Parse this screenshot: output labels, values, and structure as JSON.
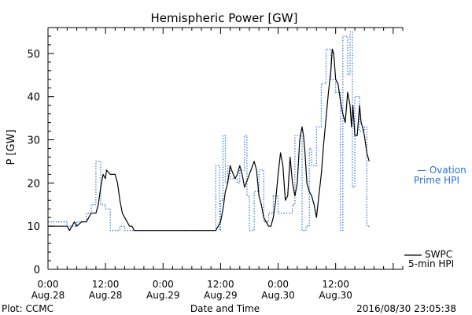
{
  "chart_data": {
    "type": "line",
    "title": "Hemispheric Power [GW]",
    "xlabel": "Date and Time",
    "ylabel": "P [GW]",
    "xlim": [
      0,
      74
    ],
    "ylim": [
      0,
      56
    ],
    "yticks": [
      0,
      10,
      20,
      30,
      40,
      50
    ],
    "xticks": [
      {
        "x": 0,
        "time": "0:00",
        "date": "Aug.28"
      },
      {
        "x": 12,
        "time": "12:00",
        "date": "Aug.28"
      },
      {
        "x": 24,
        "time": "0:00",
        "date": "Aug.29"
      },
      {
        "x": 36,
        "time": "12:00",
        "date": "Aug.29"
      },
      {
        "x": 48,
        "time": "0:00",
        "date": "Aug.30"
      },
      {
        "x": 60,
        "time": "12:00",
        "date": "Aug.30"
      }
    ],
    "footer_left": "Plot: CCMC",
    "footer_right": "2016/08/30 23:05:38",
    "series": [
      {
        "name": "Ovation Prime HPI",
        "legend": [
          "— Ovation",
          "Prime HPI"
        ],
        "color": "#2b6fd6",
        "style": "dotted-step",
        "points": [
          [
            0,
            11
          ],
          [
            4,
            11
          ],
          [
            4,
            10
          ],
          [
            6,
            10
          ],
          [
            6,
            11
          ],
          [
            8,
            11
          ],
          [
            8,
            13
          ],
          [
            9,
            13
          ],
          [
            9,
            15
          ],
          [
            10,
            15
          ],
          [
            10,
            25
          ],
          [
            11,
            25
          ],
          [
            11,
            15
          ],
          [
            12,
            15
          ],
          [
            12,
            14
          ],
          [
            13,
            14
          ],
          [
            13,
            9
          ],
          [
            15,
            9
          ],
          [
            15,
            10
          ],
          [
            16,
            10
          ],
          [
            16,
            9
          ],
          [
            35,
            9
          ],
          [
            35,
            24
          ],
          [
            35.8,
            24
          ],
          [
            35.8,
            9
          ],
          [
            36,
            9
          ],
          [
            36,
            16
          ],
          [
            36.5,
            16
          ],
          [
            36.5,
            31
          ],
          [
            37,
            31
          ],
          [
            37,
            20
          ],
          [
            37.5,
            20
          ],
          [
            37.5,
            24
          ],
          [
            38,
            24
          ],
          [
            38,
            21
          ],
          [
            39,
            21
          ],
          [
            39,
            21
          ],
          [
            39.5,
            21
          ],
          [
            39.5,
            20
          ],
          [
            40,
            20
          ],
          [
            40,
            23
          ],
          [
            41,
            23
          ],
          [
            41,
            31
          ],
          [
            41.5,
            31
          ],
          [
            41.5,
            17
          ],
          [
            42,
            17
          ],
          [
            42,
            9
          ],
          [
            43,
            9
          ],
          [
            43,
            18
          ],
          [
            44,
            18
          ],
          [
            44,
            23
          ],
          [
            45,
            23
          ],
          [
            45,
            11
          ],
          [
            46,
            11
          ],
          [
            46,
            13
          ],
          [
            47,
            13
          ],
          [
            47,
            17
          ],
          [
            48,
            17
          ],
          [
            48,
            13
          ],
          [
            51,
            13
          ],
          [
            51,
            15
          ],
          [
            51.5,
            15
          ],
          [
            51.5,
            31
          ],
          [
            53,
            31
          ],
          [
            53,
            9
          ],
          [
            53.8,
            9
          ],
          [
            53.8,
            10
          ],
          [
            54.5,
            10
          ],
          [
            54.5,
            28
          ],
          [
            55,
            28
          ],
          [
            55,
            24
          ],
          [
            56,
            24
          ],
          [
            56,
            33
          ],
          [
            57,
            33
          ],
          [
            57,
            43
          ],
          [
            58,
            43
          ],
          [
            58,
            51
          ],
          [
            59,
            51
          ],
          [
            59,
            44
          ],
          [
            60,
            44
          ],
          [
            60,
            41
          ],
          [
            61,
            41
          ],
          [
            61,
            9
          ],
          [
            61.5,
            9
          ],
          [
            61.5,
            54
          ],
          [
            62.5,
            54
          ],
          [
            62.5,
            45
          ],
          [
            63,
            45
          ],
          [
            63,
            55
          ],
          [
            63.5,
            55
          ],
          [
            63.5,
            19
          ],
          [
            64,
            19
          ],
          [
            64,
            40
          ],
          [
            65,
            40
          ],
          [
            65,
            32
          ],
          [
            66,
            32
          ],
          [
            66,
            33
          ],
          [
            66.5,
            33
          ],
          [
            66.5,
            10
          ],
          [
            67,
            10
          ]
        ]
      },
      {
        "name": "SWPC 5-min HPI",
        "legend": [
          "SWPC",
          "5-min HPI"
        ],
        "color": "#000000",
        "style": "solid",
        "points": [
          [
            0,
            10
          ],
          [
            4,
            10
          ],
          [
            4.5,
            9
          ],
          [
            5,
            10
          ],
          [
            5.5,
            11
          ],
          [
            6,
            10
          ],
          [
            7,
            11
          ],
          [
            8,
            11
          ],
          [
            8.5,
            12
          ],
          [
            9,
            13
          ],
          [
            10,
            13
          ],
          [
            10.5,
            15
          ],
          [
            11,
            19
          ],
          [
            11.5,
            22
          ],
          [
            12,
            21
          ],
          [
            12.2,
            23
          ],
          [
            13,
            22
          ],
          [
            14,
            22
          ],
          [
            14.5,
            20
          ],
          [
            15,
            16
          ],
          [
            15.5,
            13
          ],
          [
            16,
            12
          ],
          [
            16.5,
            11
          ],
          [
            17,
            10
          ],
          [
            17.5,
            10
          ],
          [
            18,
            9
          ],
          [
            24,
            9
          ],
          [
            35,
            9
          ],
          [
            36,
            11
          ],
          [
            36.5,
            14
          ],
          [
            37,
            18
          ],
          [
            37.5,
            20
          ],
          [
            38,
            24
          ],
          [
            38.3,
            23
          ],
          [
            39,
            21
          ],
          [
            39.5,
            22
          ],
          [
            40,
            24
          ],
          [
            40.5,
            22
          ],
          [
            41,
            19
          ],
          [
            42,
            22
          ],
          [
            43,
            25
          ],
          [
            43.5,
            23
          ],
          [
            44,
            17
          ],
          [
            44.5,
            15
          ],
          [
            45,
            12
          ],
          [
            45.5,
            11
          ],
          [
            46,
            10
          ],
          [
            46.5,
            10
          ],
          [
            47,
            12
          ],
          [
            47.5,
            16
          ],
          [
            48,
            22
          ],
          [
            48.5,
            27
          ],
          [
            49,
            24
          ],
          [
            49.5,
            16
          ],
          [
            50,
            17
          ],
          [
            50.5,
            26
          ],
          [
            51,
            20
          ],
          [
            51.5,
            17
          ],
          [
            52,
            20
          ],
          [
            52.5,
            30
          ],
          [
            53,
            33
          ],
          [
            53.3,
            31
          ],
          [
            53.6,
            27
          ],
          [
            54,
            20
          ],
          [
            54.5,
            18
          ],
          [
            55,
            17
          ],
          [
            55.5,
            15
          ],
          [
            56,
            12
          ],
          [
            56.5,
            17
          ],
          [
            57,
            22
          ],
          [
            57.5,
            29
          ],
          [
            58,
            35
          ],
          [
            58.5,
            41
          ],
          [
            59,
            46
          ],
          [
            59.3,
            51
          ],
          [
            59.6,
            50
          ],
          [
            60,
            44
          ],
          [
            60.5,
            43
          ],
          [
            61,
            39
          ],
          [
            61.5,
            36
          ],
          [
            62,
            34
          ],
          [
            62.5,
            41
          ],
          [
            63,
            38
          ],
          [
            63.3,
            33
          ],
          [
            63.6,
            38
          ],
          [
            64,
            31
          ],
          [
            64.5,
            31
          ],
          [
            65,
            38
          ],
          [
            65.3,
            34
          ],
          [
            65.6,
            33
          ],
          [
            66,
            31
          ],
          [
            66.5,
            27
          ],
          [
            67,
            25
          ]
        ]
      }
    ],
    "grid": false,
    "legend_position": "right"
  }
}
